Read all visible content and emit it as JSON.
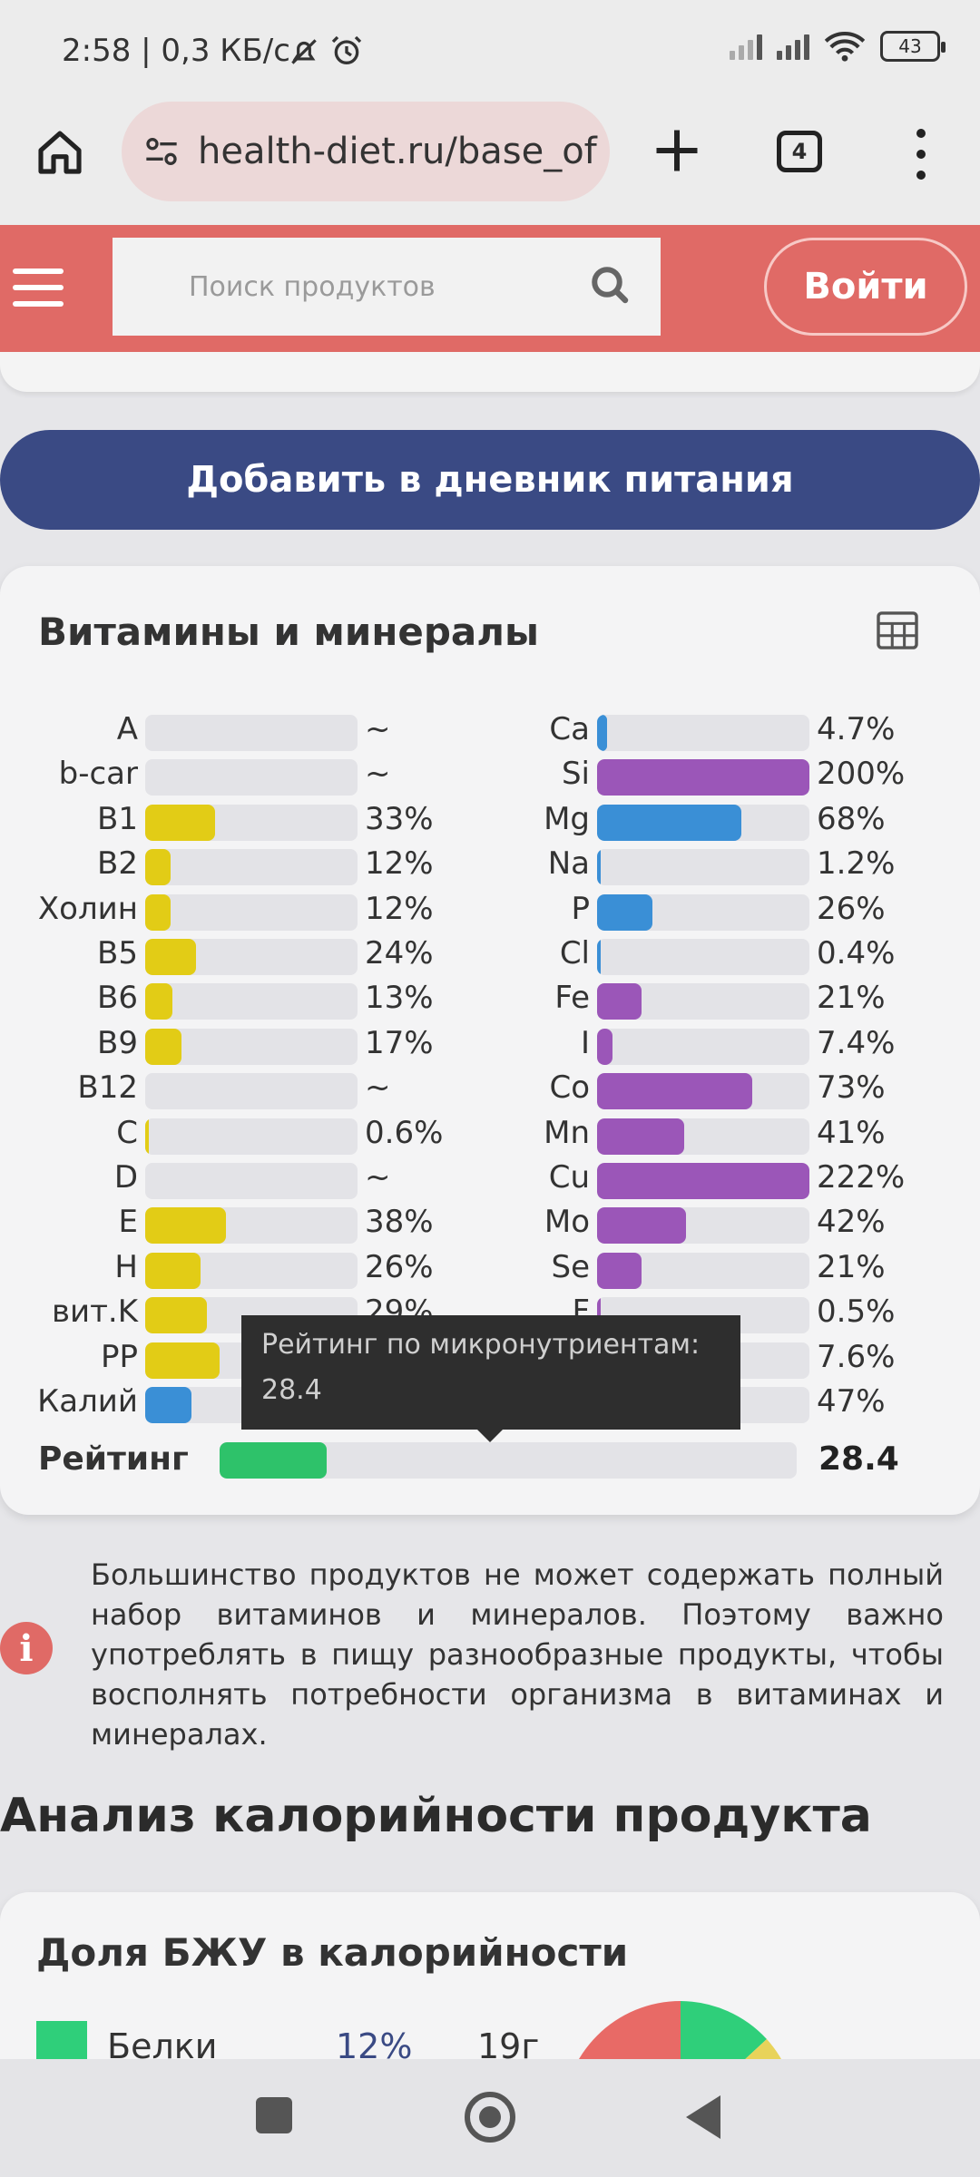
{
  "status_bar": {
    "time_text": "2:58 | 0,3 КБ/с",
    "battery": "43",
    "icons": [
      "mute-bell-icon",
      "alarm-icon",
      "signal-icon",
      "signal-icon",
      "wifi-icon",
      "battery-icon"
    ]
  },
  "browser": {
    "url": "health-diet.ru/base_of",
    "tab_count": "4"
  },
  "header": {
    "search_placeholder": "Поиск продуктов",
    "login_label": "Войти"
  },
  "add_diary_label": "Добавить в дневник питания",
  "vitamins": {
    "title": "Витамины и минералы",
    "left": [
      {
        "label": "A",
        "pct_text": "~",
        "value": 0,
        "color": "#e2cc16"
      },
      {
        "label": "b-car",
        "pct_text": "~",
        "value": 0,
        "color": "#e2cc16"
      },
      {
        "label": "B1",
        "pct_text": "33%",
        "value": 33,
        "color": "#e2cc16"
      },
      {
        "label": "B2",
        "pct_text": "12%",
        "value": 12,
        "color": "#e2cc16"
      },
      {
        "label": "Холин",
        "pct_text": "12%",
        "value": 12,
        "color": "#e2cc16"
      },
      {
        "label": "B5",
        "pct_text": "24%",
        "value": 24,
        "color": "#e2cc16"
      },
      {
        "label": "B6",
        "pct_text": "13%",
        "value": 13,
        "color": "#e2cc16"
      },
      {
        "label": "B9",
        "pct_text": "17%",
        "value": 17,
        "color": "#e2cc16"
      },
      {
        "label": "B12",
        "pct_text": "~",
        "value": 0,
        "color": "#e2cc16"
      },
      {
        "label": "C",
        "pct_text": "0.6%",
        "value": 0.6,
        "color": "#e2cc16"
      },
      {
        "label": "D",
        "pct_text": "~",
        "value": 0,
        "color": "#e2cc16"
      },
      {
        "label": "E",
        "pct_text": "38%",
        "value": 38,
        "color": "#e2cc16"
      },
      {
        "label": "H",
        "pct_text": "26%",
        "value": 26,
        "color": "#e2cc16"
      },
      {
        "label": "вит.K",
        "pct_text": "29%",
        "value": 29,
        "color": "#e2cc16"
      },
      {
        "label": "PP",
        "pct_text": "",
        "value": 35,
        "color": "#e2cc16"
      },
      {
        "label": "Калий",
        "pct_text": "",
        "value": 22,
        "color": "#3a8fd6"
      }
    ],
    "right": [
      {
        "label": "Ca",
        "pct_text": "4.7%",
        "value": 4.7,
        "color": "#3a8fd6"
      },
      {
        "label": "Si",
        "pct_text": "200%",
        "value": 200,
        "color": "#9b56b8"
      },
      {
        "label": "Mg",
        "pct_text": "68%",
        "value": 68,
        "color": "#3a8fd6"
      },
      {
        "label": "Na",
        "pct_text": "1.2%",
        "value": 1.2,
        "color": "#3a8fd6"
      },
      {
        "label": "P",
        "pct_text": "26%",
        "value": 26,
        "color": "#3a8fd6"
      },
      {
        "label": "Cl",
        "pct_text": "0.4%",
        "value": 0.4,
        "color": "#3a8fd6"
      },
      {
        "label": "Fe",
        "pct_text": "21%",
        "value": 21,
        "color": "#9b56b8"
      },
      {
        "label": "I",
        "pct_text": "7.4%",
        "value": 7.4,
        "color": "#9b56b8"
      },
      {
        "label": "Co",
        "pct_text": "73%",
        "value": 73,
        "color": "#9b56b8"
      },
      {
        "label": "Mn",
        "pct_text": "41%",
        "value": 41,
        "color": "#9b56b8"
      },
      {
        "label": "Cu",
        "pct_text": "222%",
        "value": 222,
        "color": "#9b56b8"
      },
      {
        "label": "Mo",
        "pct_text": "42%",
        "value": 42,
        "color": "#9b56b8"
      },
      {
        "label": "Se",
        "pct_text": "21%",
        "value": 21,
        "color": "#9b56b8"
      },
      {
        "label": "F",
        "pct_text": "0.5%",
        "value": 0.5,
        "color": "#9b56b8"
      },
      {
        "label": "",
        "pct_text": "7.6%",
        "value": 7.6,
        "color": "#9b56b8"
      },
      {
        "label": "",
        "pct_text": "47%",
        "value": 47,
        "color": "#9b56b8"
      }
    ],
    "rating_label": "Рейтинг",
    "rating_value": "28.4",
    "rating_fill_fraction": 0.185,
    "tooltip_line1": "Рейтинг по микронутриентам:",
    "tooltip_line2": "28.4"
  },
  "info_note": "Большинство продуктов не может содержать полный набор витаминов и минералов. Поэтому важно употреблять в пищу разнообразные продукты, чтобы восполнять потребности организма в витаминах и минералах.",
  "analysis_heading": "Анализ калорийности продукта",
  "bju": {
    "title": "Доля БЖУ в калорийности",
    "first_item": {
      "name": "Белки",
      "pct": "12%",
      "grams": "19г",
      "color": "#2fcf7a"
    }
  }
}
